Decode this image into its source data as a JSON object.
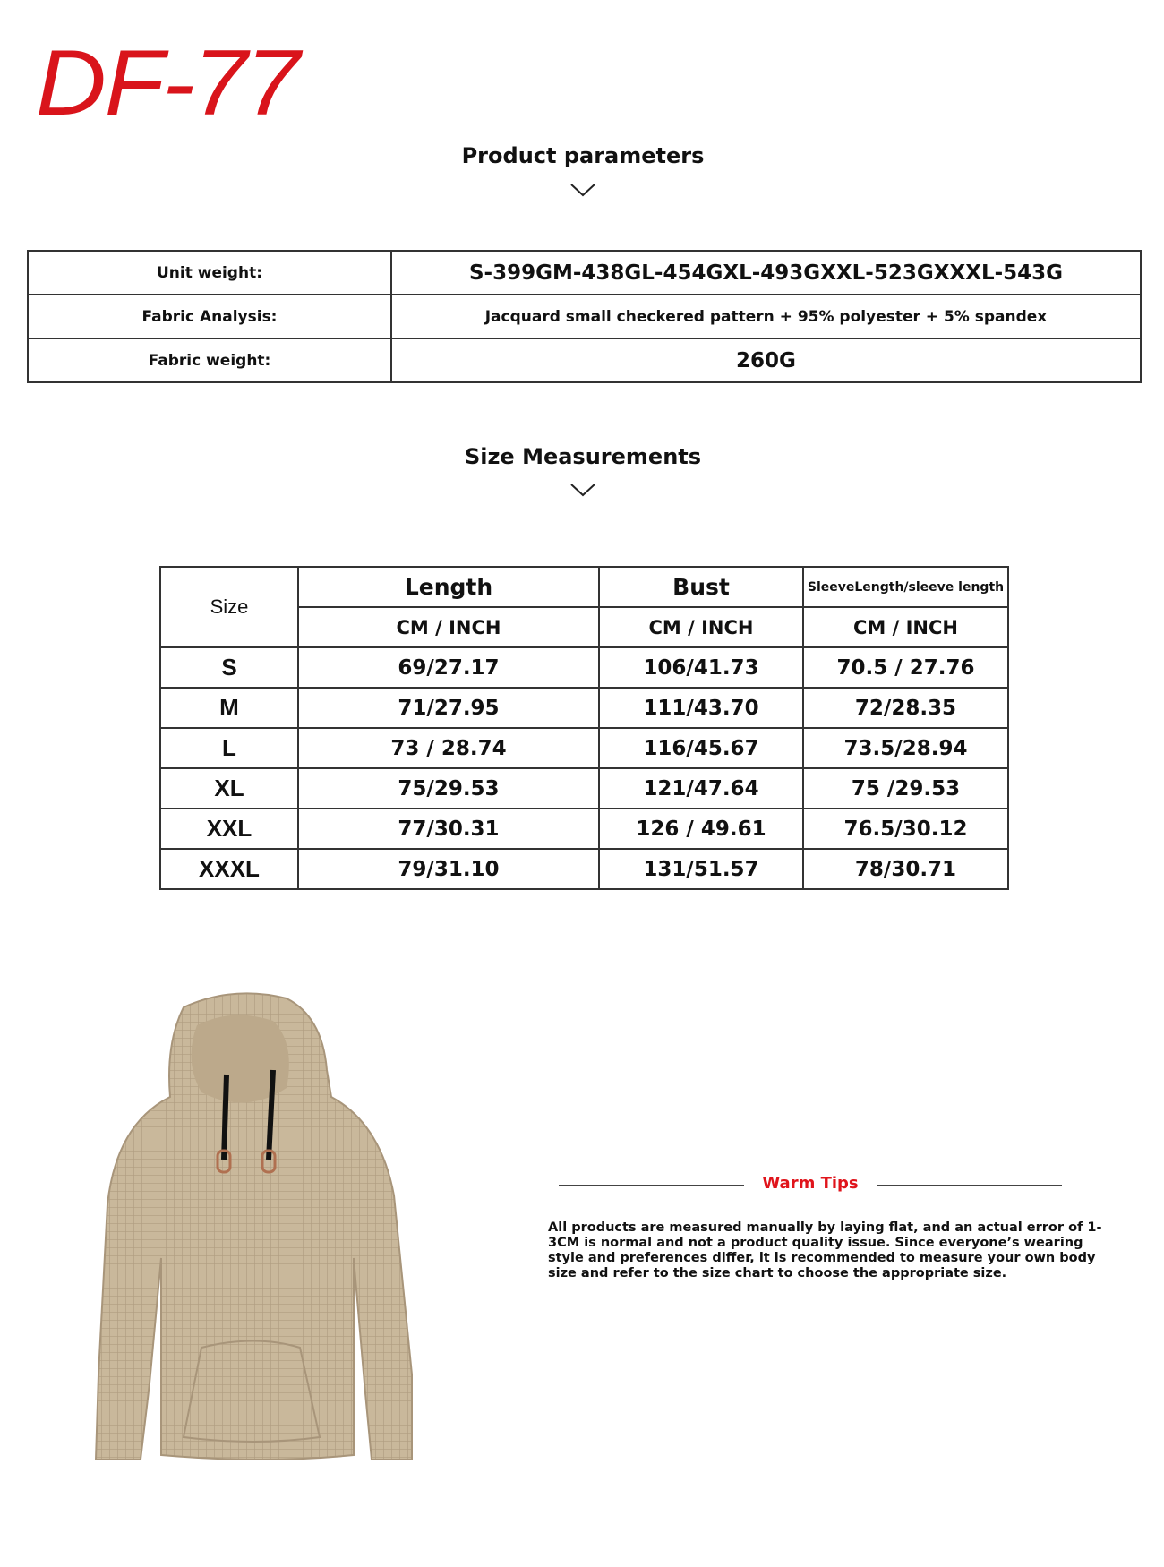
{
  "logo": {
    "text": "DF-77",
    "color": "#d9141b"
  },
  "params_section": {
    "title": "Product parameters",
    "icon": "chevron-down-icon",
    "rows": [
      {
        "label": "Unit weight:",
        "value": "S-399GM-438GL-454GXL-493GXXL-523GXXXL-543G"
      },
      {
        "label": "Fabric Analysis:",
        "value": "Jacquard small checkered pattern + 95% polyester + 5% spandex"
      },
      {
        "label": "Fabric weight:",
        "value": "260G"
      }
    ]
  },
  "size_section": {
    "title": "Size Measurements",
    "icon": "chevron-down-icon",
    "headers": {
      "size": "Size",
      "length": "Length",
      "bust": "Bust",
      "sleeve": "SleeveLength/sleeve length",
      "unit": "CM / INCH"
    },
    "rows": [
      {
        "size": "S",
        "length": "69/27.17",
        "bust": "106/41.73",
        "sleeve": "70.5 / 27.76"
      },
      {
        "size": "M",
        "length": "71/27.95",
        "bust": "111/43.70",
        "sleeve": "72/28.35"
      },
      {
        "size": "L",
        "length": "73 / 28.74",
        "bust": "116/45.67",
        "sleeve": "73.5/28.94"
      },
      {
        "size": "XL",
        "length": "75/29.53",
        "bust": "121/47.64",
        "sleeve": "75 /29.53"
      },
      {
        "size": "XXL",
        "length": "77/30.31",
        "bust": "126 / 49.61",
        "sleeve": "76.5/30.12"
      },
      {
        "size": "XXXL",
        "length": "79/31.10",
        "bust": "131/51.57",
        "sleeve": "78/30.71"
      }
    ]
  },
  "product_image": {
    "color": "#c9b89b"
  },
  "tips": {
    "title": "Warm Tips",
    "title_color": "#e0141b",
    "text": "All products are measured manually by laying flat, and an actual error of 1-3CM is normal and not a product quality issue. Since everyone’s wearing style and preferences differ, it is recommended to measure your own body size and refer to the size chart to choose the appropriate size."
  }
}
